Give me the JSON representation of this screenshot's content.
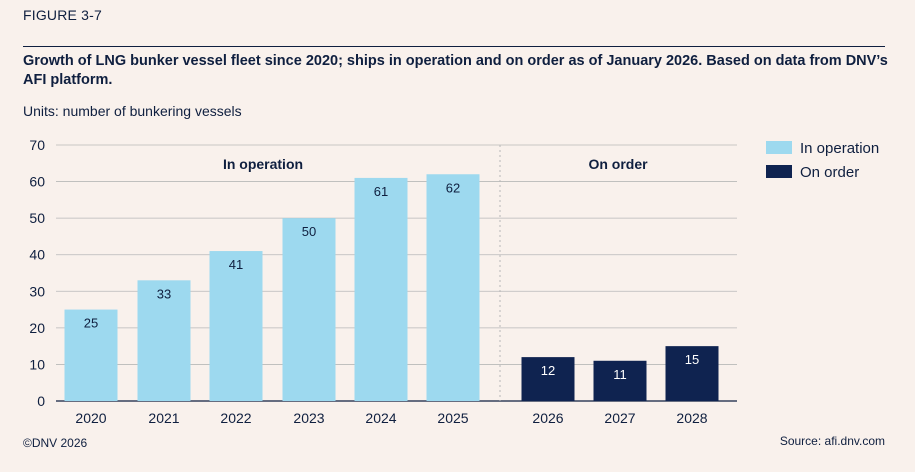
{
  "figure_label": "FIGURE 3-7",
  "title": "Growth of LNG bunker vessel fleet since 2020; ships in operation and on order as of January 2026. Based on data from DNV’s AFI platform.",
  "units": "Units: number of bunkering vessels",
  "footer": {
    "copyright": "©DNV 2026",
    "source": "Source: afi.dnv.com"
  },
  "colors": {
    "in_operation": "#9dd9ef",
    "on_order": "#0f2350",
    "text": "#0f1f3f",
    "grid": "#b8b8b8",
    "background": "#f9f1ec"
  },
  "chart_data": {
    "type": "bar",
    "title": "",
    "xlabel": "",
    "ylabel": "",
    "ylim": [
      0,
      70
    ],
    "yticks": [
      0,
      10,
      20,
      30,
      40,
      50,
      60,
      70
    ],
    "grid": true,
    "legend_position": "right",
    "categories": [
      "2020",
      "2021",
      "2022",
      "2023",
      "2024",
      "2025",
      "2026",
      "2027",
      "2028"
    ],
    "series": [
      {
        "name": "In operation",
        "values": [
          25,
          33,
          41,
          50,
          61,
          62,
          null,
          null,
          null
        ]
      },
      {
        "name": "On order",
        "values": [
          null,
          null,
          null,
          null,
          null,
          null,
          12,
          11,
          15
        ]
      }
    ],
    "annotations": [
      {
        "text": "In operation"
      },
      {
        "text": "On order"
      }
    ]
  }
}
